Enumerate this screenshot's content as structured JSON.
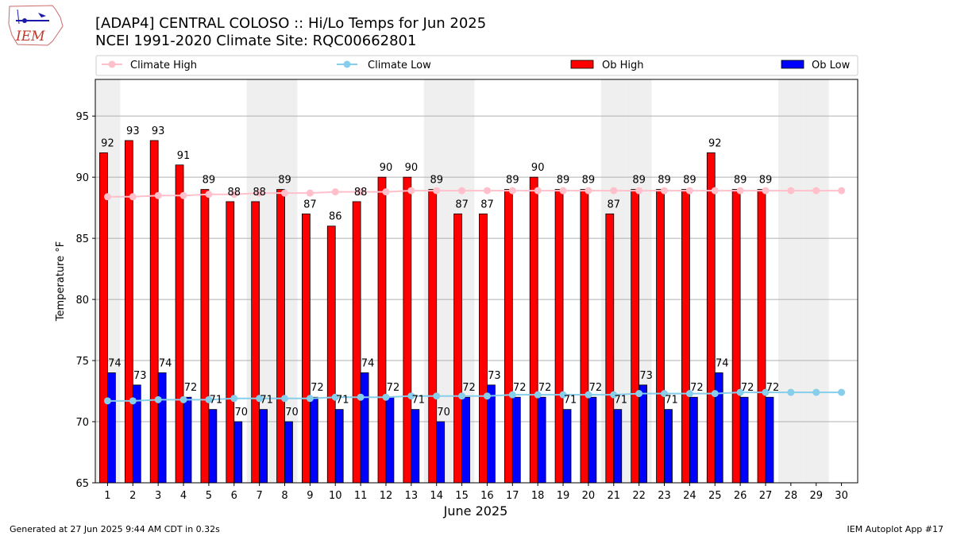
{
  "header": {
    "logo_text": "IEM",
    "title_line1": "[ADAP4] CENTRAL COLOSO :: Hi/Lo Temps for Jun 2025",
    "title_line2": "NCEI 1991-2020 Climate Site: RQC00662801"
  },
  "footer": {
    "left": "Generated at 27 Jun 2025 9:44 AM CDT in 0.32s",
    "right": "IEM Autoplot App #17"
  },
  "chart_data": {
    "type": "bar",
    "xlabel": "June 2025",
    "ylabel": "Temperature °F",
    "ylim": [
      65,
      98
    ],
    "yticks": [
      65,
      70,
      75,
      80,
      85,
      90,
      95
    ],
    "grid": "horizontal",
    "legend_position": "top",
    "weekend_shading": true,
    "categories": [
      "1",
      "2",
      "3",
      "4",
      "5",
      "6",
      "7",
      "8",
      "9",
      "10",
      "11",
      "12",
      "13",
      "14",
      "15",
      "16",
      "17",
      "18",
      "19",
      "20",
      "21",
      "22",
      "23",
      "24",
      "25",
      "26",
      "27",
      "28",
      "29",
      "30"
    ],
    "weekend_days": [
      1,
      7,
      8,
      14,
      15,
      21,
      22,
      28,
      29
    ],
    "series": [
      {
        "name": "Climate High",
        "kind": "line",
        "color": "#ffc0cb",
        "values": [
          88.4,
          88.4,
          88.5,
          88.5,
          88.6,
          88.6,
          88.7,
          88.7,
          88.7,
          88.8,
          88.8,
          88.8,
          88.9,
          88.9,
          88.9,
          88.9,
          88.9,
          88.9,
          88.9,
          88.9,
          88.9,
          88.9,
          88.9,
          88.9,
          88.9,
          88.9,
          88.9,
          88.9,
          88.9,
          88.9
        ]
      },
      {
        "name": "Climate Low",
        "kind": "line",
        "color": "#87ceeb",
        "values": [
          71.7,
          71.7,
          71.8,
          71.8,
          71.8,
          71.9,
          71.9,
          71.9,
          71.9,
          72.0,
          72.0,
          72.0,
          72.1,
          72.1,
          72.1,
          72.1,
          72.2,
          72.2,
          72.2,
          72.2,
          72.2,
          72.3,
          72.3,
          72.3,
          72.3,
          72.4,
          72.4,
          72.4,
          72.4,
          72.4
        ]
      },
      {
        "name": "Ob High",
        "kind": "bar",
        "color": "#ff0000",
        "values": [
          92,
          93,
          93,
          91,
          89,
          88,
          88,
          89,
          87,
          86,
          88,
          90,
          90,
          89,
          87,
          87,
          89,
          90,
          89,
          89,
          87,
          89,
          89,
          89,
          92,
          89,
          89,
          null,
          null,
          null
        ]
      },
      {
        "name": "Ob Low",
        "kind": "bar",
        "color": "#0000ff",
        "values": [
          74,
          73,
          74,
          72,
          71,
          70,
          71,
          70,
          72,
          71,
          74,
          72,
          71,
          70,
          72,
          73,
          72,
          72,
          71,
          72,
          71,
          73,
          71,
          72,
          74,
          72,
          72,
          null,
          null,
          null
        ]
      }
    ]
  }
}
